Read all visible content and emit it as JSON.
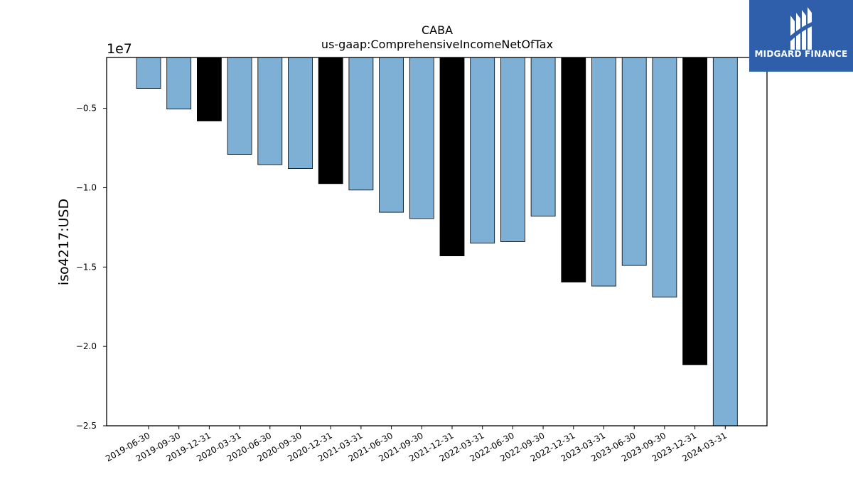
{
  "brand": {
    "name": "MIDGARD FINANCE",
    "color": "#2f5faa",
    "icon": "midgard-logo-icon"
  },
  "chart_data": {
    "type": "bar",
    "title": "CABA",
    "subtitle": "us-gaap:ComprehensiveIncomeNetOfTax",
    "ylabel": "iso4217:USD",
    "xlabel": "",
    "offset_label": "1e7",
    "ylim": [
      -25000000,
      -1800000
    ],
    "yticks": [
      -5000000,
      -10000000,
      -15000000,
      -20000000,
      -25000000
    ],
    "ytick_labels": [
      "−0.5",
      "−1.0",
      "−1.5",
      "−2.0",
      "−2.5"
    ],
    "categories": [
      "2019-06-30",
      "2019-09-30",
      "2019-12-31",
      "2020-03-31",
      "2020-06-30",
      "2020-09-30",
      "2020-12-31",
      "2021-03-31",
      "2021-06-30",
      "2021-09-30",
      "2021-12-31",
      "2022-03-31",
      "2022-06-30",
      "2022-09-30",
      "2022-12-31",
      "2023-03-31",
      "2023-06-30",
      "2023-09-30",
      "2023-12-31",
      "2024-03-31"
    ],
    "values": [
      -3750000,
      -5050000,
      -5800000,
      -7900000,
      -8550000,
      -8800000,
      -9750000,
      -10150000,
      -11550000,
      -11950000,
      -14300000,
      -13500000,
      -13400000,
      -11800000,
      -15950000,
      -16200000,
      -14900000,
      -16900000,
      -21150000,
      -25000000
    ],
    "colors": {
      "quarter": "#7eafd4",
      "annual": "#000000"
    },
    "annual_flags": [
      false,
      false,
      true,
      false,
      false,
      false,
      true,
      false,
      false,
      false,
      true,
      false,
      false,
      false,
      true,
      false,
      false,
      false,
      true,
      false
    ],
    "grid": false
  }
}
